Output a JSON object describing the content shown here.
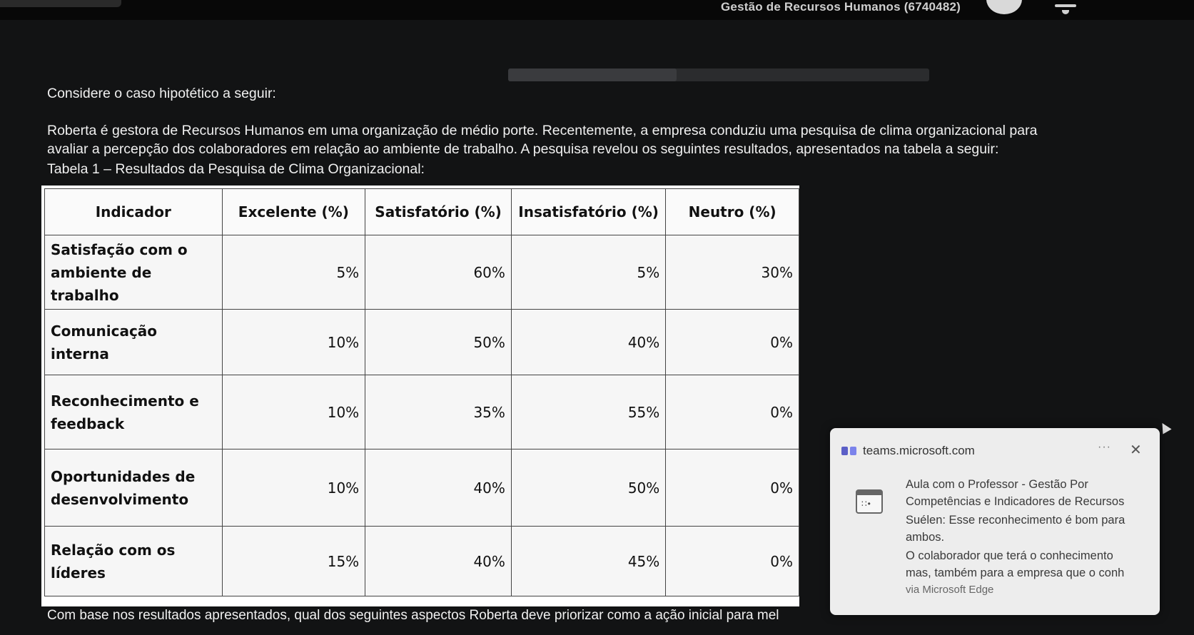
{
  "header": {
    "course_title": "Gestão de Recursos Humanos (6740482)"
  },
  "question": {
    "intro": "Considere o caso hipotético a seguir:",
    "paragraph_line1": "Roberta é gestora de Recursos Humanos em uma organização de médio porte. Recentemente, a empresa conduziu uma pesquisa de clima organizacional para",
    "paragraph_line2": "avaliar a percepção dos colaboradores em relação ao ambiente de trabalho. A pesquisa revelou os seguintes resultados, apresentados na tabela a seguir:",
    "table_caption": "Tabela 1 – Resultados da Pesquisa de Clima Organizacional:",
    "prompt": "Com base nos resultados apresentados, qual dos seguintes aspectos Roberta deve priorizar como a ação inicial para mel"
  },
  "table": {
    "headers": [
      "Indicador",
      "Excelente (%)",
      "Satisfatório (%)",
      "Insatisfatório (%)",
      "Neutro (%)"
    ],
    "rows": [
      [
        "Satisfação com o ambiente de trabalho",
        "5%",
        "60%",
        "5%",
        "30%"
      ],
      [
        "Comunicação interna",
        "10%",
        "50%",
        "40%",
        "0%"
      ],
      [
        "Reconhecimento e feedback",
        "10%",
        "35%",
        "55%",
        "0%"
      ],
      [
        "Oportunidades de desenvolvimento",
        "10%",
        "40%",
        "50%",
        "0%"
      ],
      [
        "Relação com os líderes",
        "15%",
        "40%",
        "45%",
        "0%"
      ]
    ]
  },
  "notification": {
    "source": "teams.microsoft.com",
    "more_label": "···",
    "close_label": "✕",
    "line1": "Aula com o Professor - Gestão Por",
    "line2": "Competências e Indicadores de Recursos",
    "line3": "Suélen: Esse reconhecimento é bom para",
    "line4": "ambos.",
    "line5": "O colaborador que terá o conhecimento",
    "line6": "mas, também para a empresa que o conh",
    "via": "via Microsoft Edge"
  },
  "progress": {
    "fraction": 0.4
  }
}
